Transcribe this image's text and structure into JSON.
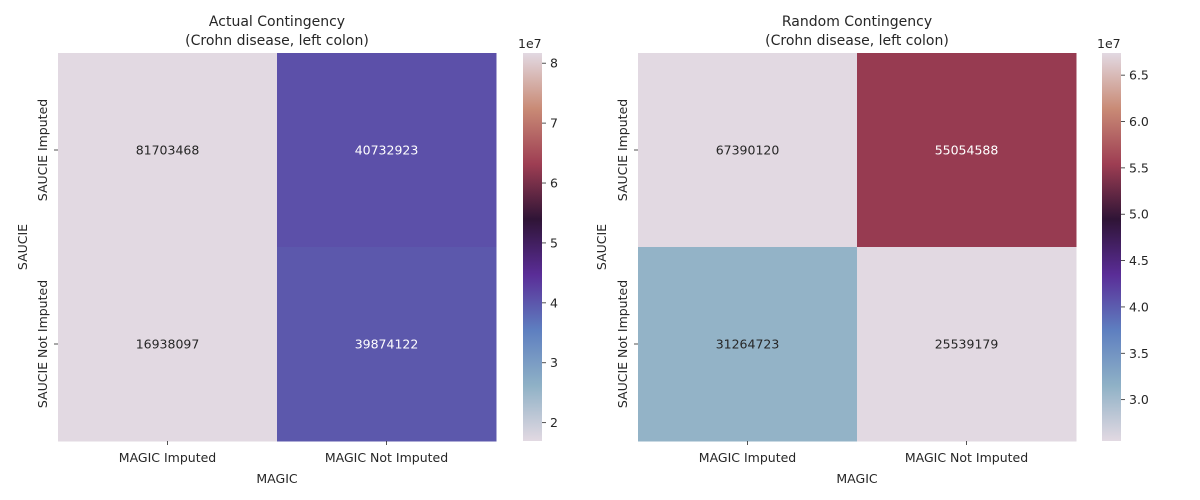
{
  "chart_data": [
    {
      "type": "heatmap",
      "title_line1": "Actual Contingency",
      "title_line2": "(Crohn disease, left colon)",
      "xlabel": "MAGIC",
      "ylabel": "SAUCIE",
      "x_categories": [
        "MAGIC Imputed",
        "MAGIC Not Imputed"
      ],
      "y_categories": [
        "SAUCIE Imputed",
        "SAUCIE Not Imputed"
      ],
      "values": [
        [
          81703468,
          40732923
        ],
        [
          16938097,
          39874122
        ]
      ],
      "vmin": 16938097,
      "vmax": 81703468,
      "colorbar_ticks": [
        2,
        3,
        4,
        5,
        6,
        7,
        8
      ],
      "colorbar_labels": [
        "2",
        "3",
        "4",
        "5",
        "6",
        "7",
        "8"
      ],
      "colorbar_exponent": "1e7",
      "colormap": "twilight",
      "colormap_stops": [
        "#e2d9e2",
        "#8fb1c6",
        "#5e7fc0",
        "#5a2d97",
        "#2f1436",
        "#9e3e53",
        "#c98b76",
        "#e2d9e2"
      ]
    },
    {
      "type": "heatmap",
      "title_line1": "Random Contingency",
      "title_line2": "(Crohn disease, left colon)",
      "xlabel": "MAGIC",
      "ylabel": "SAUCIE",
      "x_categories": [
        "MAGIC Imputed",
        "MAGIC Not Imputed"
      ],
      "y_categories": [
        "SAUCIE Imputed",
        "SAUCIE Not Imputed"
      ],
      "values": [
        [
          67390120,
          55054588
        ],
        [
          31264723,
          25539179
        ]
      ],
      "vmin": 25539179,
      "vmax": 67390120,
      "colorbar_ticks": [
        3.0,
        3.5,
        4.0,
        4.5,
        5.0,
        5.5,
        6.0,
        6.5
      ],
      "colorbar_labels": [
        "3.0",
        "3.5",
        "4.0",
        "4.5",
        "5.0",
        "5.5",
        "6.0",
        "6.5"
      ],
      "colorbar_exponent": "1e7",
      "colormap": "twilight",
      "colormap_stops": [
        "#e2d9e2",
        "#8fb1c6",
        "#5e7fc0",
        "#5a2d97",
        "#2f1436",
        "#9e3e53",
        "#c98b76",
        "#e2d9e2"
      ]
    }
  ]
}
